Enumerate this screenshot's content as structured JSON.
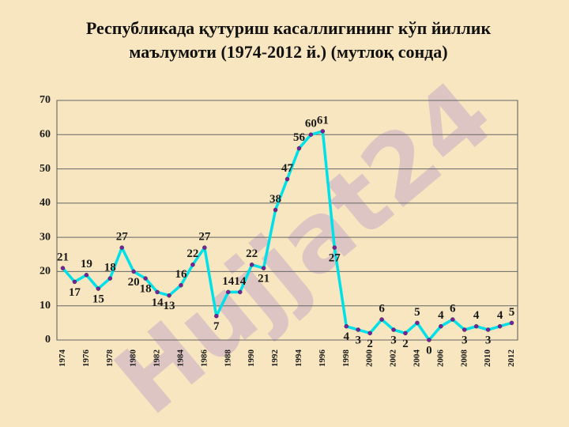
{
  "chart_data": {
    "type": "line",
    "title": [
      "Республикада қутуриш касаллигининг кўп йиллик",
      "маълумоти (1974-2012 й.) (мутлоқ сонда)"
    ],
    "watermark": "Hujjat24",
    "categories": [
      "1974",
      null,
      "1976",
      null,
      "1978",
      null,
      "1980",
      null,
      "1982",
      null,
      "1984",
      null,
      "1986",
      null,
      "1988",
      null,
      "1990",
      null,
      "1992",
      null,
      "1994",
      null,
      "1996",
      null,
      "1998",
      null,
      "2000",
      null,
      "2002",
      null,
      "2004",
      null,
      "2006",
      null,
      "2008",
      null,
      "2010",
      null,
      "2012"
    ],
    "series": [
      {
        "color": "#00e0e8",
        "marker_color": "#7a1fa0",
        "values": [
          21,
          17,
          19,
          15,
          18,
          27,
          20,
          18,
          14,
          13,
          16,
          22,
          27,
          7,
          14,
          14,
          22,
          21,
          38,
          47,
          56,
          60,
          61,
          27,
          4,
          3,
          2,
          6,
          3,
          2,
          5,
          0,
          4,
          6,
          3,
          4,
          3,
          4,
          5
        ]
      }
    ],
    "ylim": [
      0,
      70
    ],
    "yticks": [
      0,
      10,
      20,
      30,
      40,
      50,
      60,
      70
    ],
    "grid": true
  }
}
